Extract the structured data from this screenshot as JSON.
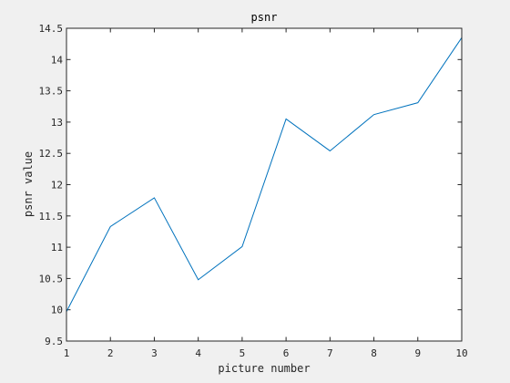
{
  "chart_data": {
    "type": "line",
    "title": "psnr",
    "xlabel": "picture number",
    "ylabel": "psnr value",
    "xlim": [
      1,
      10
    ],
    "ylim": [
      9.5,
      14.5
    ],
    "x_ticks": [
      1,
      2,
      3,
      4,
      5,
      6,
      7,
      8,
      9,
      10
    ],
    "x_tick_labels": [
      "1",
      "2",
      "3",
      "4",
      "5",
      "6",
      "7",
      "8",
      "9",
      "10"
    ],
    "y_ticks": [
      9.5,
      10,
      10.5,
      11,
      11.5,
      12,
      12.5,
      13,
      13.5,
      14,
      14.5
    ],
    "y_tick_labels": [
      "9.5",
      "10",
      "10.5",
      "11",
      "11.5",
      "12",
      "12.5",
      "13",
      "13.5",
      "14",
      "14.5"
    ],
    "grid": false,
    "series": [
      {
        "x": [
          1,
          2,
          3,
          4,
          5,
          6,
          7,
          8,
          9,
          10
        ],
        "values": [
          9.97,
          11.33,
          11.79,
          10.48,
          11.01,
          13.05,
          12.54,
          13.12,
          13.31,
          14.35
        ],
        "color": "#0072bd"
      }
    ]
  }
}
